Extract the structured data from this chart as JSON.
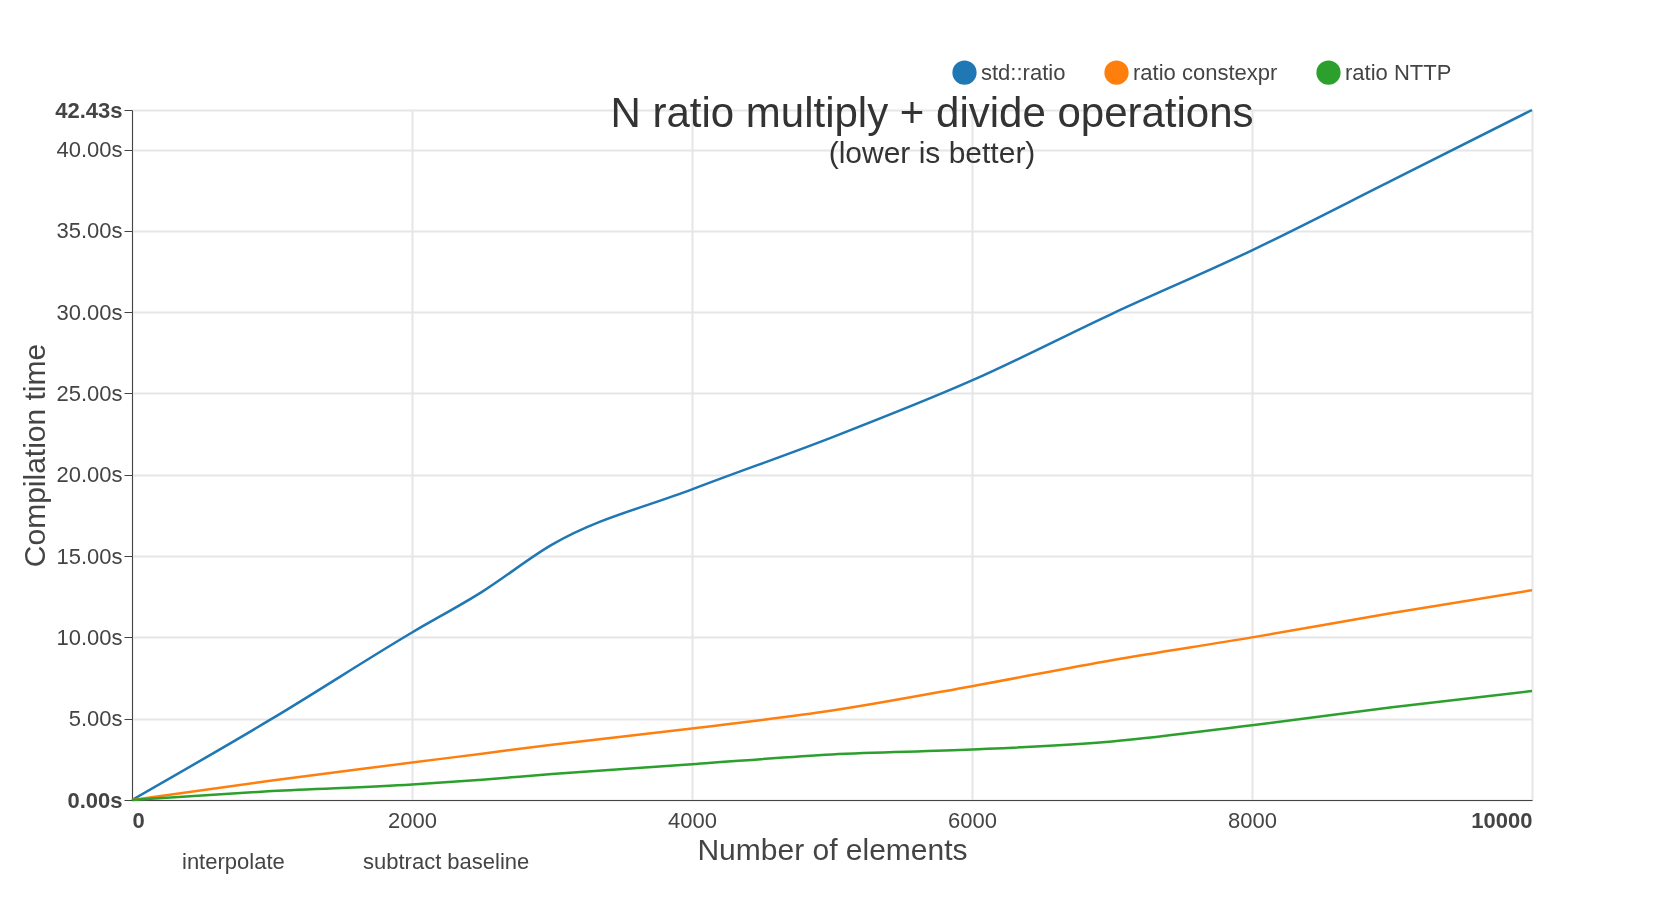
{
  "chart_data": {
    "type": "line",
    "title": "N ratio multiply + divide operations",
    "subtitle": "(lower is better)",
    "xlabel": "Number of elements",
    "ylabel": "Compilation time",
    "x": [
      0,
      1000,
      2000,
      2500,
      3000,
      4000,
      5000,
      6000,
      7000,
      8000,
      9000,
      10000
    ],
    "series": [
      {
        "name": "std::ratio",
        "color": "#1f77b4",
        "values": [
          0,
          5.0,
          10.3,
          12.8,
          15.7,
          19.1,
          22.3,
          25.8,
          29.9,
          33.8,
          38.1,
          42.43
        ]
      },
      {
        "name": "ratio constexpr",
        "color": "#ff7f0e",
        "values": [
          0,
          1.2,
          2.3,
          2.85,
          3.4,
          4.4,
          5.5,
          7.0,
          8.6,
          10.0,
          11.5,
          12.9
        ]
      },
      {
        "name": "ratio NTTP",
        "color": "#2ca02c",
        "values": [
          0,
          0.55,
          0.95,
          1.25,
          1.6,
          2.2,
          2.8,
          3.1,
          3.6,
          4.6,
          5.7,
          6.7
        ]
      }
    ],
    "xlim": [
      0,
      10000
    ],
    "xticks": [
      0,
      2000,
      4000,
      6000,
      8000,
      10000
    ],
    "ylim": [
      0,
      42.43
    ],
    "yticks": [
      {
        "value": 0,
        "label": "0.00s"
      },
      {
        "value": 5,
        "label": "5.00s"
      },
      {
        "value": 10,
        "label": "10.00s"
      },
      {
        "value": 15,
        "label": "15.00s"
      },
      {
        "value": 20,
        "label": "20.00s"
      },
      {
        "value": 25,
        "label": "25.00s"
      },
      {
        "value": 30,
        "label": "30.00s"
      },
      {
        "value": 35,
        "label": "35.00s"
      },
      {
        "value": 40,
        "label": "40.00s"
      },
      {
        "value": 42.43,
        "label": "42.43s"
      }
    ],
    "grid": true,
    "legend": "top right",
    "marker": "none",
    "line_style": "solid",
    "annotations": [
      "interpolate",
      "subtract baseline"
    ]
  }
}
